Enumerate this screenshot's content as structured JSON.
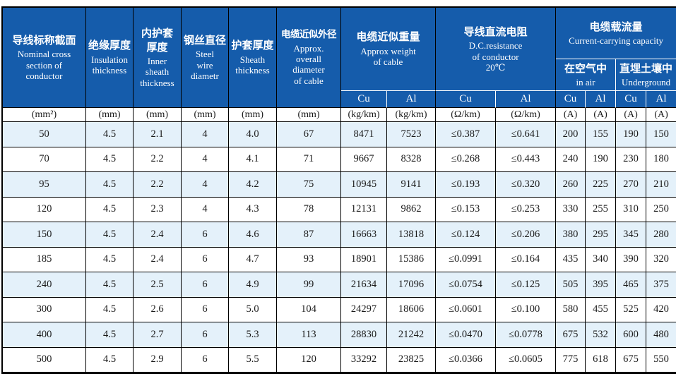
{
  "colors": {
    "header_bg": "#155cab",
    "header_text": "#ffffff",
    "stripe_bg": "#e4f1fa",
    "grid_line": "#000000",
    "body_text": "#1a1a1a"
  },
  "table": {
    "header": {
      "nominal": {
        "zh": "导线标称截面",
        "en": "Nominal cross\nsection of\nconductor"
      },
      "insulation": {
        "zh": "绝缘厚度",
        "en": "Insulation\nthickness"
      },
      "inner_sheath": {
        "zh": "内护套\n厚度",
        "en": "Inner\nsheath\nthickness"
      },
      "steel_wire": {
        "zh": "钢丝直径",
        "en": "Steel\nwire\ndiametr"
      },
      "sheath": {
        "zh": "护套厚度",
        "en": "Sheath\nthickness"
      },
      "diameter": {
        "zh": "电缆近似外径",
        "en": "Approx.\noverall\ndiameter\nof cable"
      },
      "weight": {
        "zh": "电缆近似重量",
        "en": "Approx weight\nof cable"
      },
      "dc_resistance": {
        "zh": "导线直流电阻",
        "en": "D.C.resistance\nof conductor\n20℃"
      },
      "capacity": {
        "zh": "电缆载流量",
        "en": "Current-carrying capacity"
      },
      "in_air": {
        "zh": "在空气中",
        "en": "in air"
      },
      "underground": {
        "zh": "直埋土壤中",
        "en": "Underground"
      },
      "conductor_labels": [
        "Cu",
        "Al",
        "Cu",
        "Al",
        "Cu",
        "Al",
        "Cu",
        "Al"
      ]
    },
    "units": [
      "(mm²)",
      "(mm)",
      "(mm)",
      "(mm)",
      "(mm)",
      "(mm)",
      "(kg/km)",
      "(kg/km)",
      "(Ω/km)",
      "(Ω/km)",
      "(A)",
      "(A)",
      "(A)",
      "(A)"
    ],
    "rows": [
      [
        "50",
        "4.5",
        "2.1",
        "4",
        "4.0",
        "67",
        "8471",
        "7523",
        "≤0.387",
        "≤0.641",
        "200",
        "155",
        "190",
        "150"
      ],
      [
        "70",
        "4.5",
        "2.2",
        "4",
        "4.1",
        "71",
        "9667",
        "8328",
        "≤0.268",
        "≤0.443",
        "240",
        "190",
        "230",
        "180"
      ],
      [
        "95",
        "4.5",
        "2.2",
        "4",
        "4.2",
        "75",
        "10945",
        "9141",
        "≤0.193",
        "≤0.320",
        "260",
        "225",
        "270",
        "210"
      ],
      [
        "120",
        "4.5",
        "2.3",
        "4",
        "4.3",
        "78",
        "12131",
        "9862",
        "≤0.153",
        "≤0.253",
        "330",
        "255",
        "310",
        "250"
      ],
      [
        "150",
        "4.5",
        "2.4",
        "6",
        "4.6",
        "87",
        "16663",
        "13818",
        "≤0.124",
        "≤0.206",
        "380",
        "295",
        "345",
        "280"
      ],
      [
        "185",
        "4.5",
        "2.4",
        "6",
        "4.7",
        "93",
        "18901",
        "15386",
        "≤0.0991",
        "≤0.164",
        "435",
        "340",
        "390",
        "320"
      ],
      [
        "240",
        "4.5",
        "2.5",
        "6",
        "4.9",
        "99",
        "21634",
        "17096",
        "≤0.0754",
        "≤0.125",
        "505",
        "395",
        "465",
        "375"
      ],
      [
        "300",
        "4.5",
        "2.6",
        "6",
        "5.0",
        "104",
        "24297",
        "18606",
        "≤0.0601",
        "≤0.100",
        "580",
        "455",
        "525",
        "420"
      ],
      [
        "400",
        "4.5",
        "2.7",
        "6",
        "5.3",
        "113",
        "28830",
        "21242",
        "≤0.0470",
        "≤0.0778",
        "675",
        "532",
        "600",
        "480"
      ],
      [
        "500",
        "4.5",
        "2.9",
        "6",
        "5.5",
        "120",
        "33292",
        "23825",
        "≤0.0366",
        "≤0.0605",
        "775",
        "618",
        "675",
        "550"
      ]
    ]
  }
}
